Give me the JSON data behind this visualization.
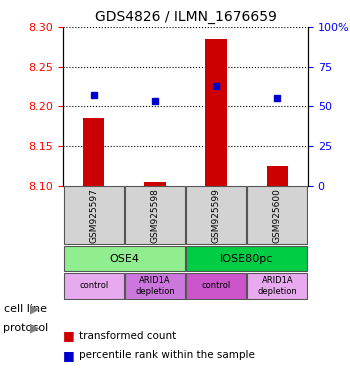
{
  "title": "GDS4826 / ILMN_1676659",
  "samples": [
    "GSM925597",
    "GSM925598",
    "GSM925599",
    "GSM925600"
  ],
  "bar_values": [
    8.185,
    8.105,
    8.285,
    8.125
  ],
  "bar_base": 8.1,
  "percentile_values": [
    57,
    53,
    63,
    55
  ],
  "ylim_left": [
    8.1,
    8.3
  ],
  "ylim_right": [
    0,
    100
  ],
  "yticks_left": [
    8.1,
    8.15,
    8.2,
    8.25,
    8.3
  ],
  "yticks_right": [
    0,
    25,
    50,
    75,
    100
  ],
  "ytick_labels_right": [
    "0",
    "25",
    "50",
    "75",
    "100%"
  ],
  "bar_color": "#cc0000",
  "dot_color": "#0000cc",
  "grid_color": "#000000",
  "cell_line_groups": [
    {
      "label": "OSE4",
      "color": "#90ee90",
      "samples": [
        0,
        1
      ]
    },
    {
      "label": "IOSE80pc",
      "color": "#00cc44",
      "samples": [
        2,
        3
      ]
    }
  ],
  "protocol_groups": [
    {
      "label": "control",
      "color": "#ee88ee",
      "sample": 0
    },
    {
      "label": "ARID1A\ndepletion",
      "color": "#ee88ee",
      "sample": 1
    },
    {
      "label": "control",
      "color": "#cc55cc",
      "sample": 2
    },
    {
      "label": "ARID1A\ndepletion",
      "color": "#ee88ee",
      "sample": 3
    }
  ],
  "legend_items": [
    {
      "color": "#cc0000",
      "label": "transformed count"
    },
    {
      "color": "#0000cc",
      "label": "percentile rank within the sample"
    }
  ],
  "cell_line_label": "cell line",
  "protocol_label": "protocol",
  "sample_box_color": "#d3d3d3",
  "sample_box_edge": "#555555"
}
